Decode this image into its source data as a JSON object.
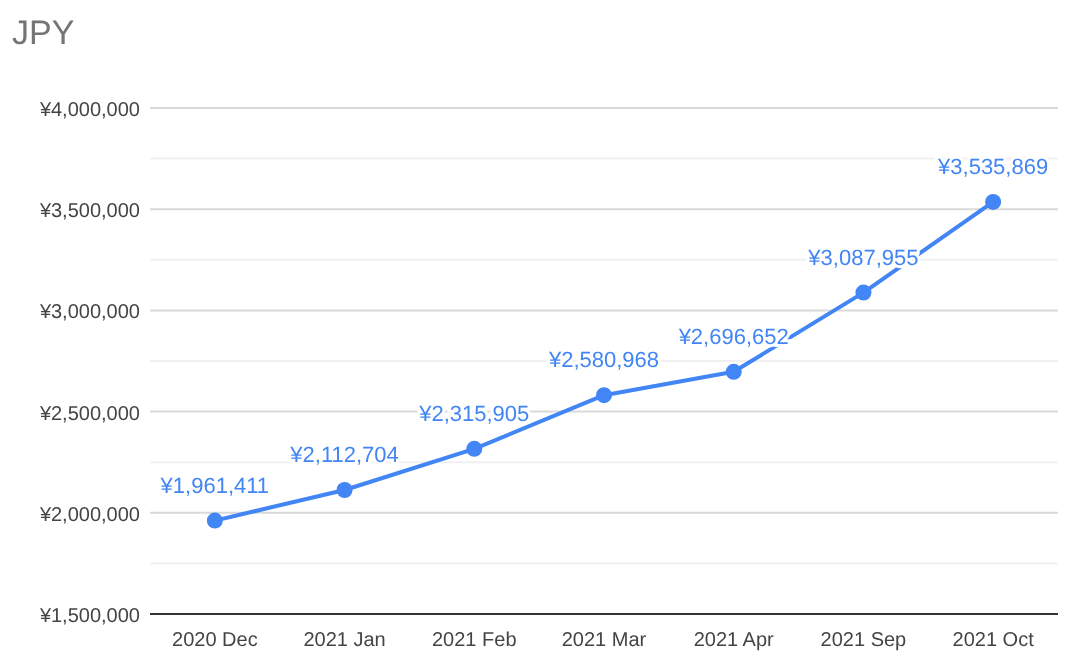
{
  "chart_data": {
    "type": "line",
    "title": "JPY",
    "categories": [
      "2020 Dec",
      "2021 Jan",
      "2021 Feb",
      "2021 Mar",
      "2021 Apr",
      "2021 Sep",
      "2021 Oct"
    ],
    "series": [
      {
        "color": "#4285f4",
        "values": [
          1961411,
          2112704,
          2315905,
          2580968,
          2696652,
          3087955,
          3535869
        ],
        "value_labels": [
          "¥1,961,411",
          "¥2,112,704",
          "¥2,315,905",
          "¥2,580,968",
          "¥2,696,652",
          "¥3,087,955",
          "¥3,535,869"
        ]
      }
    ],
    "ylim": [
      1500000,
      4000000
    ],
    "yticks": [
      {
        "value": 1500000,
        "label": "¥1,500,000"
      },
      {
        "value": 1750000,
        "label": null
      },
      {
        "value": 2000000,
        "label": "¥2,000,000"
      },
      {
        "value": 2250000,
        "label": null
      },
      {
        "value": 2500000,
        "label": "¥2,500,000"
      },
      {
        "value": 2750000,
        "label": null
      },
      {
        "value": 3000000,
        "label": "¥3,000,000"
      },
      {
        "value": 3250000,
        "label": null
      },
      {
        "value": 3500000,
        "label": "¥3,500,000"
      },
      {
        "value": 3750000,
        "label": null
      },
      {
        "value": 4000000,
        "label": "¥4,000,000"
      }
    ],
    "grid": "y",
    "marker": "circle",
    "line_style": "solid"
  }
}
